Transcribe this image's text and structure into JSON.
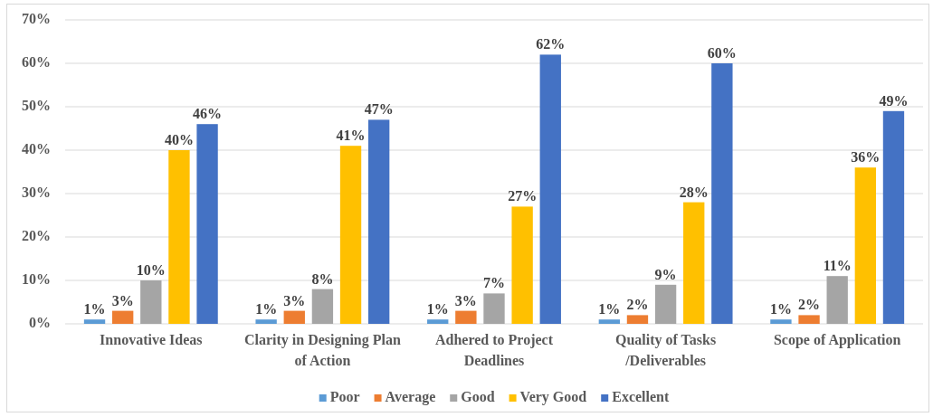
{
  "chart_data": {
    "type": "bar",
    "categories": [
      "Innovative Ideas",
      "Clarity in Designing Plan of Action",
      "Adhered to Project Deadlines",
      "Quality of Tasks /Deliverables",
      "Scope of Application"
    ],
    "series": [
      {
        "name": "Poor",
        "color": "#5b9bd5",
        "values": [
          1,
          1,
          1,
          1,
          1
        ],
        "value_labels": [
          "1%",
          "1%",
          "1%",
          "1%",
          "1%"
        ]
      },
      {
        "name": "Average",
        "color": "#ed7d31",
        "values": [
          3,
          3,
          3,
          2,
          2
        ],
        "value_labels": [
          "3%",
          "3%",
          "3%",
          "2%",
          "2%"
        ]
      },
      {
        "name": "Good",
        "color": "#a5a5a5",
        "values": [
          10,
          8,
          7,
          9,
          11
        ],
        "value_labels": [
          "10%",
          "8%",
          "7%",
          "9%",
          "11%"
        ]
      },
      {
        "name": "Very Good",
        "color": "#ffc000",
        "values": [
          40,
          41,
          27,
          28,
          36
        ],
        "value_labels": [
          "40%",
          "41%",
          "27%",
          "28%",
          "36%"
        ]
      },
      {
        "name": "Excellent",
        "color": "#4472c4",
        "values": [
          46,
          47,
          62,
          60,
          49
        ],
        "value_labels": [
          "46%",
          "47%",
          "62%",
          "60%",
          "49%"
        ]
      }
    ],
    "ylim": [
      0,
      70
    ],
    "yticks": [
      {
        "value": 0,
        "label": "0%"
      },
      {
        "value": 10,
        "label": "10%"
      },
      {
        "value": 20,
        "label": "20%"
      },
      {
        "value": 30,
        "label": "30%"
      },
      {
        "value": 40,
        "label": "40%"
      },
      {
        "value": 50,
        "label": "50%"
      },
      {
        "value": 60,
        "label": "60%"
      },
      {
        "value": 70,
        "label": "70%"
      }
    ],
    "grid": "y",
    "legend": "bottom"
  }
}
